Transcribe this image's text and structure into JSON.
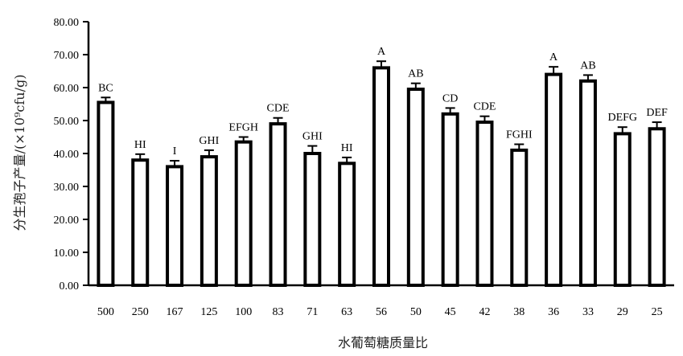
{
  "chart_data": {
    "type": "bar",
    "xlabel": "水葡萄糖质量比",
    "ylabel": "分生孢子产量/(×10⁹cfu/g)",
    "ylim": [
      0,
      80
    ],
    "yticks": [
      "0.00",
      "10.00",
      "20.00",
      "30.00",
      "40.00",
      "50.00",
      "60.00",
      "70.00",
      "80.00"
    ],
    "categories": [
      "500",
      "250",
      "167",
      "125",
      "100",
      "83",
      "71",
      "63",
      "56",
      "50",
      "45",
      "42",
      "38",
      "36",
      "33",
      "29",
      "25"
    ],
    "values": [
      55.5,
      38.0,
      36.0,
      39.0,
      43.5,
      49.0,
      40.0,
      37.0,
      66.0,
      59.5,
      52.0,
      49.5,
      41.0,
      64.0,
      62.0,
      46.0,
      47.5
    ],
    "errors": [
      1.5,
      1.8,
      1.8,
      2.0,
      1.5,
      1.8,
      2.3,
      1.8,
      2.0,
      1.8,
      1.8,
      1.8,
      1.8,
      2.3,
      1.8,
      2.0,
      2.0
    ],
    "significance": [
      "BC",
      "HI",
      "I",
      "GHI",
      "EFGH",
      "CDE",
      "GHI",
      "HI",
      "A",
      "AB",
      "CD",
      "CDE",
      "FGHI",
      "A",
      "AB",
      "DEFG",
      "DEF"
    ],
    "grid": false,
    "legend": "none",
    "colors": {
      "bar_fill": "#ffffff",
      "bar_stroke": "#000000"
    }
  }
}
